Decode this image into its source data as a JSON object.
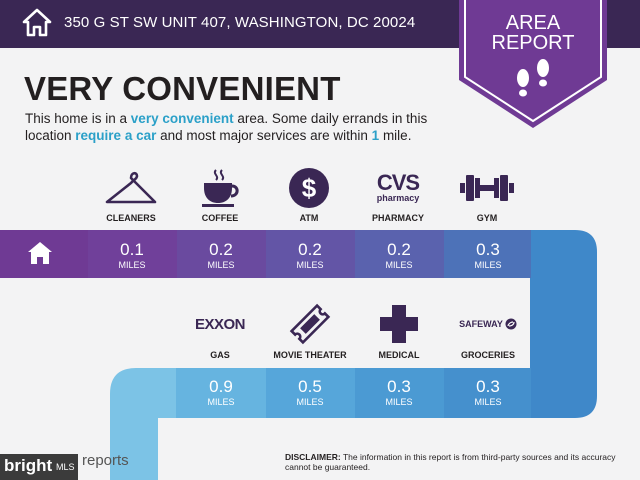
{
  "header": {
    "address": "350 G ST SW UNIT 407, WASHINGTON, DC 20024",
    "icon": "home-icon"
  },
  "badge": {
    "line1": "AREA",
    "line2": "REPORT",
    "icon": "footprints-icon"
  },
  "headline": "VERY CONVENIENT",
  "description": {
    "p1": "This home is in a ",
    "h1": "very convenient",
    "p2": " area. Some daily errands in this location ",
    "h2": "require a car",
    "p3": " and most major services are within ",
    "h3": "1",
    "p4": " mile."
  },
  "row1": [
    {
      "label": "CLEANERS",
      "value": "0.1",
      "unit": "MILES",
      "icon": "hanger-icon"
    },
    {
      "label": "COFFEE",
      "value": "0.2",
      "unit": "MILES",
      "icon": "coffee-cup-icon"
    },
    {
      "label": "ATM",
      "value": "0.2",
      "unit": "MILES",
      "icon": "dollar-icon"
    },
    {
      "label": "PHARMACY",
      "value": "0.2",
      "unit": "MILES",
      "icon": "cvs-logo-icon",
      "logo": "CVS",
      "logo_sub": "pharmacy"
    },
    {
      "label": "GYM",
      "value": "0.3",
      "unit": "MILES",
      "icon": "dumbbell-icon"
    }
  ],
  "row2": [
    {
      "label": "GAS",
      "value": "0.9",
      "unit": "MILES",
      "icon": "exxon-logo-icon",
      "logo": "EXXON"
    },
    {
      "label": "MOVIE THEATER",
      "value": "0.5",
      "unit": "MILES",
      "icon": "ticket-icon"
    },
    {
      "label": "MEDICAL",
      "value": "0.3",
      "unit": "MILES",
      "icon": "medical-cross-icon"
    },
    {
      "label": "GROCERIES",
      "value": "0.3",
      "unit": "MILES",
      "icon": "safeway-logo-icon",
      "logo": "SAFEWAY"
    }
  ],
  "disclaimer": {
    "label": "DISCLAIMER:",
    "text": " The information in this report is from third-party sources and its accuracy cannot be guaranteed."
  },
  "footer": {
    "brand": "bright",
    "mls": "MLS",
    "reports": "reports"
  },
  "colors": {
    "topbar": "#3a2754",
    "purple": "#6f3a94",
    "blue": "#3f88c9",
    "lightblue": "#7cc3e6",
    "highlight": "#2ba0c8"
  }
}
